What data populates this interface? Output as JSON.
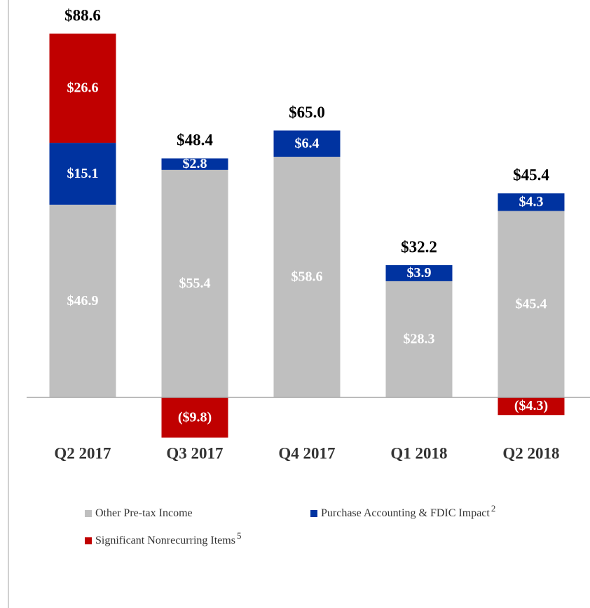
{
  "chart_data": {
    "type": "stacked_bar",
    "categories": [
      "Q2 2017",
      "Q3 2017",
      "Q4 2017",
      "Q1 2018",
      "Q2 2018"
    ],
    "series": [
      {
        "name": "Other Pre-tax Income",
        "color": "#bfbfbf",
        "values": [
          46.9,
          55.4,
          58.6,
          28.3,
          45.4
        ],
        "value_labels": [
          "$46.9",
          "$55.4",
          "$58.6",
          "$28.3",
          "$45.4"
        ]
      },
      {
        "name": "Purchase Accounting & FDIC Impact",
        "footnote": "2",
        "color": "#0033a0",
        "values": [
          15.1,
          2.8,
          6.4,
          3.9,
          4.3
        ],
        "value_labels": [
          "$15.1",
          "$2.8",
          "$6.4",
          "$3.9",
          "$4.3"
        ]
      },
      {
        "name": "Significant Nonrecurring Items",
        "footnote": "5",
        "color": "#c00000",
        "values": [
          26.6,
          -9.8,
          null,
          null,
          -4.3
        ],
        "value_labels": [
          "$26.6",
          "($9.8)",
          null,
          null,
          "($4.3)"
        ]
      }
    ],
    "totals": {
      "values": [
        88.6,
        48.4,
        65.0,
        32.2,
        45.4
      ],
      "value_labels": [
        "$88.6",
        "$48.4",
        "$65.0",
        "$32.2",
        "$45.4"
      ]
    }
  }
}
